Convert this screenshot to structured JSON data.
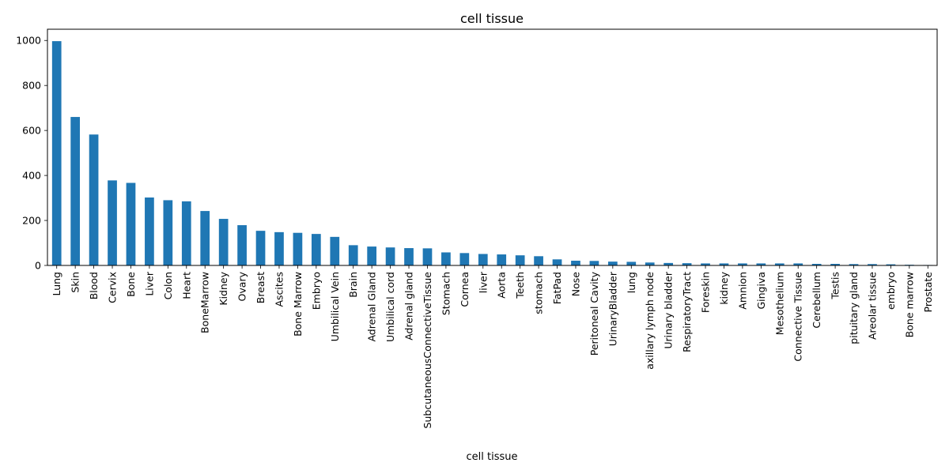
{
  "chart_data": {
    "type": "bar",
    "title": "cell tissue",
    "xlabel": "cell tissue",
    "ylabel": "",
    "ylim": [
      0,
      1050
    ],
    "yticks": [
      0,
      200,
      400,
      600,
      800,
      1000
    ],
    "grid": false,
    "bar_color": "#1f77b4",
    "categories": [
      "Lung",
      "Skin",
      "Blood",
      "Cervix",
      "Bone",
      "Liver",
      "Colon",
      "Heart",
      "BoneMarrow",
      "Kidney",
      "Ovary",
      "Breast",
      "Ascites",
      "Bone Marrow",
      "Embryo",
      "Umbilical Vein",
      "Brain",
      "Adrenal Gland",
      "Umbilical cord",
      "Adrenal gland",
      "SubcutaneousConnectiveTissue",
      "Stomach",
      "Cornea",
      "liver",
      "Aorta",
      "Teeth",
      "stomach",
      "FatPad",
      "Nose",
      "Peritoneal Cavity",
      "UrinaryBladder",
      "lung",
      "axillary lymph node",
      "Urinary bladder",
      "RespiratoryTract",
      "Foreskin",
      "kidney",
      "Amnion",
      "Gingiva",
      "Mesothelium",
      "Connective Tissue",
      "Cerebellum",
      "Testis",
      "pituitary gland",
      "Areolar tissue",
      "embryo",
      "Bone marrow",
      "Prostate"
    ],
    "values": [
      997,
      660,
      582,
      378,
      367,
      302,
      290,
      285,
      242,
      207,
      179,
      154,
      148,
      145,
      140,
      127,
      90,
      84,
      80,
      77,
      76,
      58,
      55,
      51,
      49,
      45,
      41,
      27,
      21,
      20,
      17,
      16,
      13,
      11,
      10,
      9,
      9,
      9,
      9,
      9,
      9,
      7,
      7,
      6,
      6,
      5,
      3,
      2
    ]
  }
}
